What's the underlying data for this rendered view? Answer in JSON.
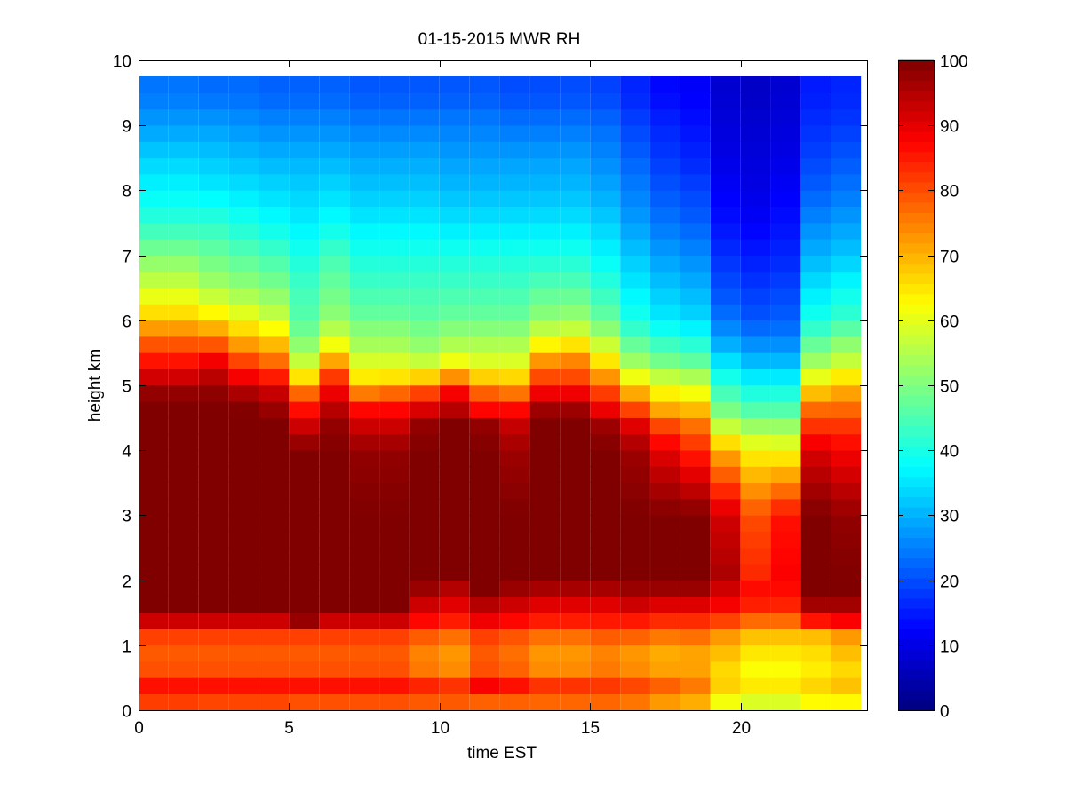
{
  "chart_data": {
    "type": "heatmap",
    "title": "01-15-2015 MWR RH",
    "xlabel": "time EST",
    "ylabel": "height km",
    "xlim": [
      0,
      24.2
    ],
    "ylim": [
      0,
      10
    ],
    "xticks": [
      "0",
      "5",
      "10",
      "15",
      "20"
    ],
    "yticks": [
      "0",
      "1",
      "2",
      "3",
      "4",
      "5",
      "6",
      "7",
      "8",
      "9",
      "10"
    ],
    "colorbar": {
      "colormap": "jet",
      "range": [
        0,
        100
      ],
      "ticks": [
        "0",
        "10",
        "20",
        "30",
        "40",
        "50",
        "60",
        "70",
        "80",
        "90",
        "100"
      ]
    },
    "grid": false,
    "time_start": 0,
    "time_step": 1,
    "time_count": 24,
    "time_cell_width": 0.98,
    "height_top": 9.75,
    "profile_heights_km": [
      0.0,
      0.1,
      0.2,
      0.3,
      0.4,
      0.6,
      0.8,
      1.0,
      1.2,
      1.4,
      1.6,
      1.8,
      2.0,
      3.0,
      4.0,
      4.4,
      4.6,
      4.8,
      5.0,
      5.2,
      5.4,
      5.6,
      5.8,
      6.0,
      6.5,
      7.0,
      7.5,
      8.0,
      8.5,
      9.0,
      9.5
    ],
    "relative_humidity_pct": [
      [
        63,
        80,
        86,
        92,
        84,
        80,
        78,
        80,
        82,
        94,
        100,
        100,
        100,
        100,
        100,
        100,
        100,
        100,
        95,
        90,
        85,
        80,
        75,
        68,
        58,
        50,
        42,
        37,
        33,
        28,
        24
      ],
      [
        63,
        80,
        86,
        92,
        84,
        80,
        78,
        80,
        82,
        94,
        100,
        100,
        100,
        100,
        100,
        100,
        100,
        100,
        95,
        90,
        85,
        80,
        75,
        68,
        58,
        50,
        42,
        37,
        33,
        28,
        24
      ],
      [
        65,
        79,
        86,
        92,
        84,
        80,
        78,
        80,
        82,
        94,
        100,
        100,
        100,
        100,
        100,
        100,
        100,
        100,
        96,
        93,
        88,
        80,
        73,
        66,
        54,
        48,
        42,
        36,
        32,
        28,
        23
      ],
      [
        65,
        79,
        86,
        92,
        84,
        80,
        78,
        80,
        82,
        94,
        100,
        100,
        100,
        100,
        100,
        100,
        100,
        98,
        92,
        86,
        80,
        73,
        68,
        62,
        52,
        46,
        40,
        35,
        31,
        27,
        23
      ],
      [
        65,
        79,
        86,
        92,
        84,
        80,
        78,
        80,
        82,
        94,
        100,
        100,
        100,
        100,
        100,
        100,
        98,
        95,
        90,
        82,
        76,
        70,
        65,
        58,
        50,
        44,
        38,
        34,
        30,
        26,
        22
      ],
      [
        66,
        78,
        85,
        92,
        84,
        80,
        78,
        80,
        82,
        100,
        100,
        100,
        100,
        100,
        100,
        92,
        87,
        82,
        70,
        62,
        56,
        52,
        49,
        46,
        44,
        40,
        36,
        33,
        30,
        26,
        22
      ],
      [
        66,
        78,
        85,
        92,
        84,
        80,
        78,
        80,
        82,
        94,
        100,
        100,
        100,
        100,
        100,
        98,
        95,
        92,
        85,
        80,
        70,
        62,
        57,
        52,
        48,
        44,
        38,
        34,
        30,
        26,
        22
      ],
      [
        66,
        78,
        85,
        92,
        84,
        80,
        78,
        80,
        82,
        94,
        100,
        100,
        100,
        100,
        98,
        92,
        88,
        80,
        68,
        62,
        58,
        54,
        52,
        48,
        44,
        40,
        36,
        32,
        29,
        25,
        21
      ],
      [
        66,
        78,
        85,
        92,
        84,
        80,
        78,
        80,
        82,
        94,
        100,
        100,
        100,
        100,
        98,
        92,
        88,
        82,
        70,
        62,
        58,
        54,
        52,
        48,
        44,
        40,
        36,
        32,
        29,
        25,
        21
      ],
      [
        67,
        77,
        84,
        90,
        82,
        76,
        74,
        76,
        80,
        88,
        92,
        96,
        100,
        100,
        100,
        98,
        92,
        85,
        75,
        62,
        56,
        52,
        50,
        47,
        44,
        40,
        36,
        32,
        29,
        25,
        21
      ],
      [
        67,
        77,
        84,
        90,
        80,
        74,
        72,
        74,
        78,
        86,
        90,
        92,
        100,
        100,
        100,
        100,
        95,
        92,
        82,
        68,
        60,
        55,
        52,
        48,
        44,
        40,
        35,
        31,
        28,
        25,
        21
      ],
      [
        67,
        76,
        84,
        94,
        86,
        80,
        78,
        80,
        82,
        90,
        94,
        100,
        100,
        100,
        100,
        98,
        88,
        82,
        72,
        64,
        58,
        55,
        52,
        48,
        44,
        40,
        35,
        31,
        28,
        25,
        21
      ],
      [
        67,
        76,
        84,
        92,
        84,
        78,
        76,
        78,
        80,
        88,
        92,
        96,
        100,
        100,
        97,
        93,
        88,
        80,
        70,
        64,
        58,
        55,
        52,
        48,
        44,
        40,
        35,
        31,
        28,
        24,
        20
      ],
      [
        66,
        76,
        82,
        90,
        80,
        74,
        72,
        74,
        78,
        86,
        90,
        94,
        100,
        100,
        100,
        100,
        98,
        92,
        84,
        78,
        72,
        64,
        58,
        52,
        46,
        40,
        35,
        31,
        28,
        24,
        20
      ],
      [
        66,
        76,
        82,
        90,
        80,
        74,
        72,
        74,
        78,
        86,
        90,
        94,
        100,
        100,
        100,
        100,
        98,
        92,
        84,
        78,
        74,
        66,
        59,
        53,
        46,
        40,
        35,
        31,
        28,
        24,
        20
      ],
      [
        66,
        76,
        82,
        88,
        80,
        76,
        74,
        76,
        80,
        86,
        90,
        94,
        100,
        100,
        100,
        97,
        90,
        84,
        78,
        70,
        64,
        58,
        53,
        48,
        42,
        37,
        33,
        29,
        26,
        23,
        19
      ],
      [
        55,
        74,
        82,
        88,
        78,
        74,
        72,
        74,
        80,
        86,
        92,
        96,
        100,
        100,
        97,
        90,
        82,
        74,
        66,
        58,
        52,
        48,
        44,
        40,
        36,
        32,
        28,
        25,
        22,
        19,
        16
      ],
      [
        45,
        70,
        80,
        84,
        76,
        72,
        70,
        72,
        78,
        84,
        90,
        96,
        100,
        100,
        90,
        80,
        72,
        66,
        60,
        54,
        48,
        44,
        40,
        36,
        32,
        28,
        24,
        21,
        18,
        16,
        13
      ],
      [
        45,
        68,
        78,
        80,
        74,
        72,
        70,
        74,
        78,
        84,
        90,
        96,
        100,
        100,
        84,
        76,
        70,
        64,
        58,
        52,
        46,
        42,
        38,
        34,
        30,
        26,
        22,
        19,
        16,
        14,
        12
      ],
      [
        48,
        60,
        66,
        70,
        66,
        66,
        68,
        70,
        74,
        82,
        88,
        90,
        96,
        92,
        70,
        56,
        50,
        46,
        42,
        38,
        34,
        30,
        27,
        24,
        20,
        17,
        14,
        12,
        10,
        9,
        8
      ],
      [
        48,
        58,
        62,
        66,
        64,
        62,
        64,
        66,
        70,
        78,
        84,
        88,
        84,
        80,
        63,
        52,
        46,
        42,
        38,
        34,
        30,
        27,
        24,
        21,
        18,
        15,
        12,
        10,
        9,
        8,
        7
      ],
      [
        48,
        58,
        62,
        66,
        64,
        62,
        64,
        66,
        70,
        78,
        84,
        86,
        88,
        86,
        62,
        52,
        46,
        42,
        38,
        34,
        30,
        27,
        24,
        22,
        19,
        16,
        14,
        12,
        10,
        9,
        8
      ],
      [
        55,
        62,
        65,
        68,
        66,
        64,
        65,
        67,
        70,
        88,
        96,
        100,
        100,
        100,
        91,
        82,
        78,
        72,
        64,
        58,
        52,
        48,
        44,
        40,
        35,
        30,
        26,
        22,
        19,
        17,
        15
      ],
      [
        55,
        62,
        66,
        70,
        68,
        66,
        68,
        70,
        74,
        90,
        96,
        100,
        100,
        98,
        88,
        82,
        78,
        74,
        68,
        62,
        56,
        52,
        48,
        43,
        38,
        32,
        28,
        24,
        21,
        18,
        16
      ]
    ]
  }
}
